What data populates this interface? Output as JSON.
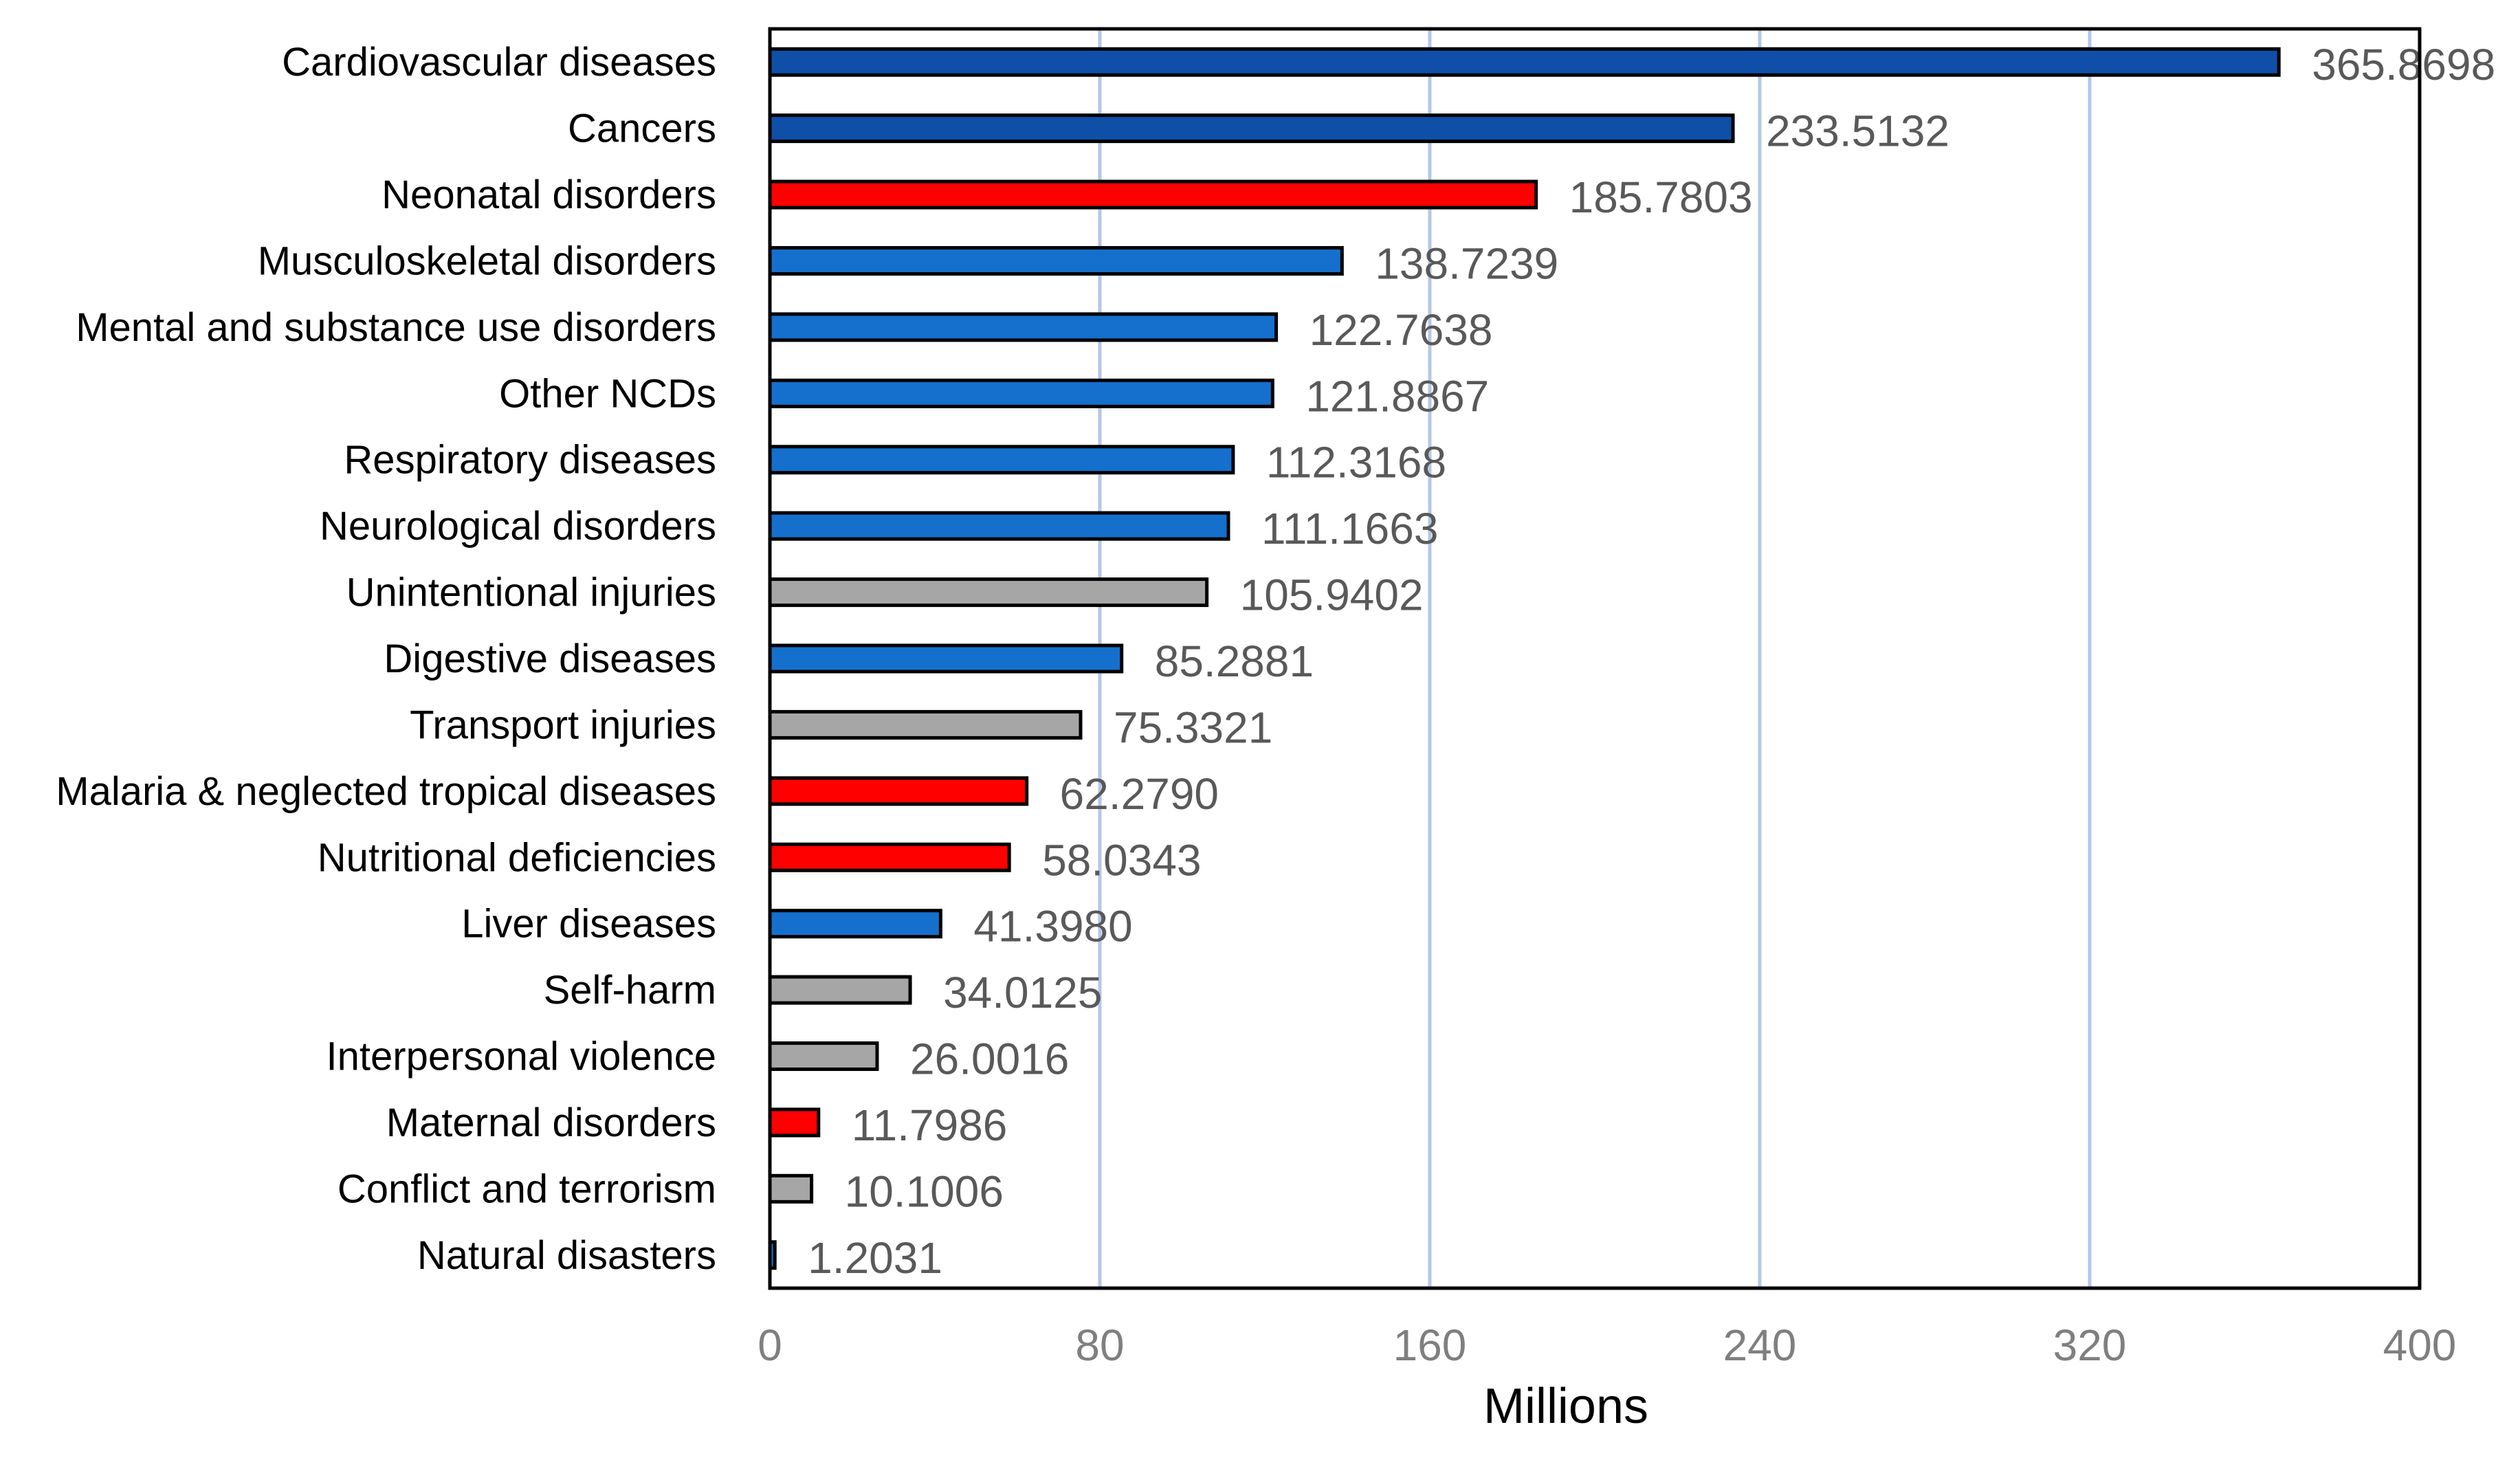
{
  "chart_data": {
    "type": "bar",
    "orientation": "horizontal",
    "title": "",
    "xlabel": "Millions",
    "ylabel": "",
    "xlim": [
      0,
      400
    ],
    "xticks": [
      0,
      80,
      160,
      240,
      320,
      400
    ],
    "grid": "vertical",
    "legend": "none",
    "categories": [
      "Cardiovascular diseases",
      "Cancers",
      "Neonatal disorders",
      "Musculoskeletal disorders",
      "Mental and substance use disorders",
      "Other NCDs",
      "Respiratory diseases",
      "Neurological disorders",
      "Unintentional injuries",
      "Digestive diseases",
      "Transport injuries",
      "Malaria & neglected tropical diseases",
      "Nutritional deficiencies",
      "Liver diseases",
      "Self-harm",
      "Interpersonal violence",
      "Maternal disorders",
      "Conflict and terrorism",
      "Natural disasters"
    ],
    "values": [
      365.8698,
      233.5132,
      185.7803,
      138.7239,
      122.7638,
      121.8867,
      112.3168,
      111.1663,
      105.9402,
      85.2881,
      75.3321,
      62.279,
      58.0343,
      41.398,
      34.0125,
      26.0016,
      11.7986,
      10.1006,
      1.2031
    ],
    "value_labels": [
      "365.8698",
      "233.5132",
      "185.7803",
      "138.7239",
      "122.7638",
      "121.8867",
      "112.3168",
      "111.1663",
      "105.9402",
      "85.2881",
      "75.3321",
      "62.2790",
      "58.0343",
      "41.3980",
      "34.0125",
      "26.0016",
      "11.7986",
      "10.1006",
      "1.2031"
    ],
    "bar_colors": [
      "#0F4FA8",
      "#0F4FA8",
      "#FF0000",
      "#1470CC",
      "#1470CC",
      "#1470CC",
      "#1470CC",
      "#1470CC",
      "#A6A6A6",
      "#1470CC",
      "#A6A6A6",
      "#FF0000",
      "#FF0000",
      "#1470CC",
      "#A6A6A6",
      "#A6A6A6",
      "#FF0000",
      "#A6A6A6",
      "#1470CC"
    ],
    "colors": {
      "gridline": "#B4C7E7",
      "bar_outline": "#000000",
      "plot_border": "#000000"
    }
  }
}
